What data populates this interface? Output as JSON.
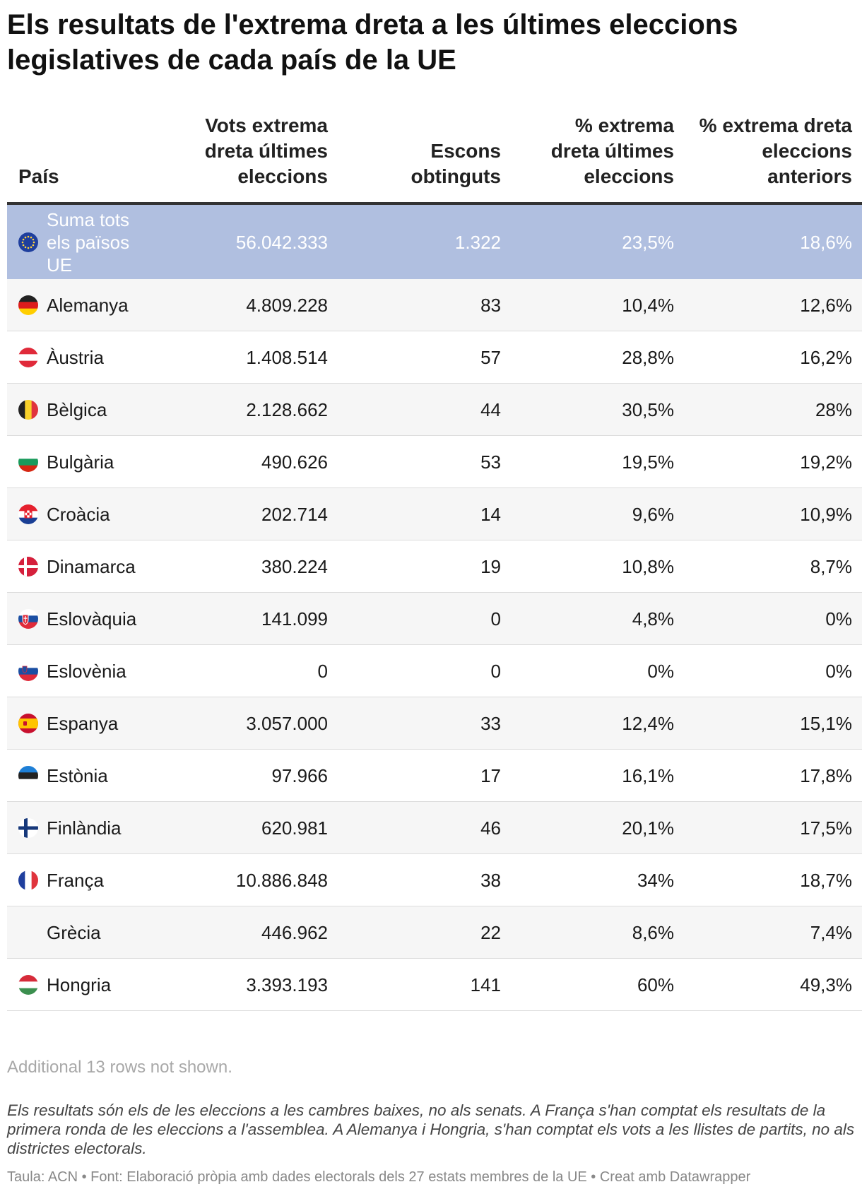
{
  "title": "Els resultats de l'extrema dreta a les últimes eleccions legislatives de cada país de la UE",
  "headers": {
    "country": "País",
    "votes": "Vots extrema dreta últimes eleccions",
    "seats": "Escons obtinguts",
    "pct_last": "% extrema dreta últimes eleccions",
    "pct_prev": "% extrema dreta eleccions anteriors"
  },
  "chart_data": {
    "type": "table",
    "title": "Els resultats de l'extrema dreta a les últimes eleccions legislatives de cada país de la UE",
    "columns": [
      "País",
      "Vots extrema dreta últimes eleccions",
      "Escons obtinguts",
      "% extrema dreta últimes eleccions",
      "% extrema dreta eleccions anteriors"
    ],
    "rows": [
      {
        "country": "Suma tots els països UE",
        "flag": "eu",
        "votes": "56.042.333",
        "seats": "1.322",
        "pct_last": "23,5%",
        "pct_prev": "18,6%"
      },
      {
        "country": "Alemanya",
        "flag": "de",
        "votes": "4.809.228",
        "seats": "83",
        "pct_last": "10,4%",
        "pct_prev": "12,6%"
      },
      {
        "country": "Àustria",
        "flag": "at",
        "votes": "1.408.514",
        "seats": "57",
        "pct_last": "28,8%",
        "pct_prev": "16,2%"
      },
      {
        "country": "Bèlgica",
        "flag": "be",
        "votes": "2.128.662",
        "seats": "44",
        "pct_last": "30,5%",
        "pct_prev": "28%"
      },
      {
        "country": "Bulgària",
        "flag": "bg",
        "votes": "490.626",
        "seats": "53",
        "pct_last": "19,5%",
        "pct_prev": "19,2%"
      },
      {
        "country": "Croàcia",
        "flag": "hr",
        "votes": "202.714",
        "seats": "14",
        "pct_last": "9,6%",
        "pct_prev": "10,9%"
      },
      {
        "country": "Dinamarca",
        "flag": "dk",
        "votes": "380.224",
        "seats": "19",
        "pct_last": "10,8%",
        "pct_prev": "8,7%"
      },
      {
        "country": "Eslovàquia",
        "flag": "sk",
        "votes": "141.099",
        "seats": "0",
        "pct_last": "4,8%",
        "pct_prev": "0%"
      },
      {
        "country": "Eslovènia",
        "flag": "si",
        "votes": "0",
        "seats": "0",
        "pct_last": "0%",
        "pct_prev": "0%"
      },
      {
        "country": "Espanya",
        "flag": "es",
        "votes": "3.057.000",
        "seats": "33",
        "pct_last": "12,4%",
        "pct_prev": "15,1%"
      },
      {
        "country": "Estònia",
        "flag": "ee",
        "votes": "97.966",
        "seats": "17",
        "pct_last": "16,1%",
        "pct_prev": "17,8%"
      },
      {
        "country": "Finlàndia",
        "flag": "fi",
        "votes": "620.981",
        "seats": "46",
        "pct_last": "20,1%",
        "pct_prev": "17,5%"
      },
      {
        "country": "França",
        "flag": "fr",
        "votes": "10.886.848",
        "seats": "38",
        "pct_last": "34%",
        "pct_prev": "18,7%"
      },
      {
        "country": "Grècia",
        "flag": "",
        "votes": "446.962",
        "seats": "22",
        "pct_last": "8,6%",
        "pct_prev": "7,4%"
      },
      {
        "country": "Hongria",
        "flag": "hu",
        "votes": "3.393.193",
        "seats": "141",
        "pct_last": "60%",
        "pct_prev": "49,3%"
      }
    ]
  },
  "more_rows": "Additional 13 rows not shown.",
  "note": "Els resultats són els de les eleccions a les cambres baixes, no als senats. A França s'han comptat els resultats de la primera ronda de les eleccions a l'assemblea. A Alemanya i Hongria, s'han comptat els vots a les llistes de partits, no als districtes electorals.",
  "source": "Taula: ACN • Font: Elaboració pròpia amb dades electorals dels 27 estats membres de la UE • Creat amb Datawrapper",
  "colors": {
    "highlight_row": "#b0bfe0",
    "stripe": "#f6f6f6",
    "divider": "#dcdcdc"
  }
}
